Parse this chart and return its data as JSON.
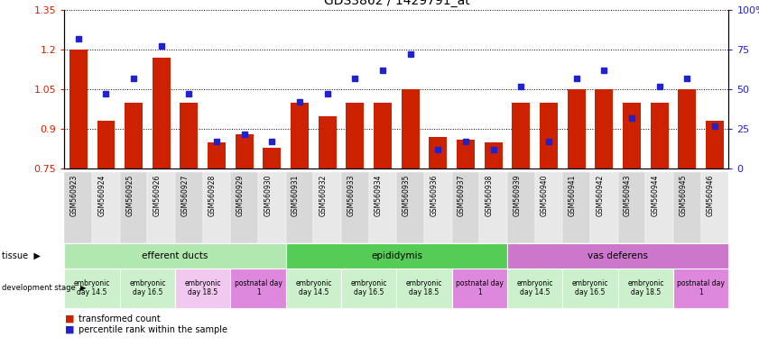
{
  "title": "GDS3862 / 1429791_at",
  "samples": [
    "GSM560923",
    "GSM560924",
    "GSM560925",
    "GSM560926",
    "GSM560927",
    "GSM560928",
    "GSM560929",
    "GSM560930",
    "GSM560931",
    "GSM560932",
    "GSM560933",
    "GSM560934",
    "GSM560935",
    "GSM560936",
    "GSM560937",
    "GSM560938",
    "GSM560939",
    "GSM560940",
    "GSM560941",
    "GSM560942",
    "GSM560943",
    "GSM560944",
    "GSM560945",
    "GSM560946"
  ],
  "red_values": [
    1.2,
    0.93,
    1.0,
    1.17,
    1.0,
    0.85,
    0.88,
    0.83,
    1.0,
    0.95,
    1.0,
    1.0,
    1.05,
    0.87,
    0.86,
    0.85,
    1.0,
    1.0,
    1.05,
    1.05,
    1.0,
    1.0,
    1.05,
    0.93
  ],
  "blue_values": [
    82,
    47,
    57,
    77,
    47,
    17,
    22,
    17,
    42,
    47,
    57,
    62,
    72,
    12,
    17,
    12,
    52,
    17,
    57,
    62,
    32,
    52,
    57,
    27
  ],
  "ylim_left": [
    0.75,
    1.35
  ],
  "ylim_right": [
    0,
    100
  ],
  "left_ticks": [
    0.75,
    0.9,
    1.05,
    1.2,
    1.35
  ],
  "right_ticks": [
    0,
    25,
    50,
    75,
    100
  ],
  "bar_color": "#cc2200",
  "marker_color": "#2222cc",
  "tissues": [
    {
      "label": "efferent ducts",
      "start": 0,
      "end": 7,
      "color": "#b0e8b0"
    },
    {
      "label": "epididymis",
      "start": 8,
      "end": 15,
      "color": "#55cc55"
    },
    {
      "label": "vas deferens",
      "start": 16,
      "end": 23,
      "color": "#cc77cc"
    }
  ],
  "dev_stages": [
    {
      "label": "embryonic\nday 14.5",
      "start": 0,
      "end": 1,
      "color": "#ccf0cc"
    },
    {
      "label": "embryonic\nday 16.5",
      "start": 2,
      "end": 3,
      "color": "#ccf0cc"
    },
    {
      "label": "embryonic\nday 18.5",
      "start": 4,
      "end": 5,
      "color": "#f0c8f0"
    },
    {
      "label": "postnatal day\n1",
      "start": 6,
      "end": 7,
      "color": "#dd88dd"
    },
    {
      "label": "embryonic\nday 14.5",
      "start": 8,
      "end": 9,
      "color": "#ccf0cc"
    },
    {
      "label": "embryonic\nday 16.5",
      "start": 10,
      "end": 11,
      "color": "#ccf0cc"
    },
    {
      "label": "embryonic\nday 18.5",
      "start": 12,
      "end": 13,
      "color": "#ccf0cc"
    },
    {
      "label": "postnatal day\n1",
      "start": 14,
      "end": 15,
      "color": "#dd88dd"
    },
    {
      "label": "embryonic\nday 14.5",
      "start": 16,
      "end": 17,
      "color": "#ccf0cc"
    },
    {
      "label": "embryonic\nday 16.5",
      "start": 18,
      "end": 19,
      "color": "#ccf0cc"
    },
    {
      "label": "embryonic\nday 18.5",
      "start": 20,
      "end": 21,
      "color": "#ccf0cc"
    },
    {
      "label": "postnatal day\n1",
      "start": 22,
      "end": 23,
      "color": "#dd88dd"
    }
  ],
  "xlabel_bg_even": "#d8d8d8",
  "xlabel_bg_odd": "#e8e8e8",
  "legend": [
    {
      "label": "transformed count",
      "color": "#cc2200"
    },
    {
      "label": "percentile rank within the sample",
      "color": "#2222cc"
    }
  ]
}
